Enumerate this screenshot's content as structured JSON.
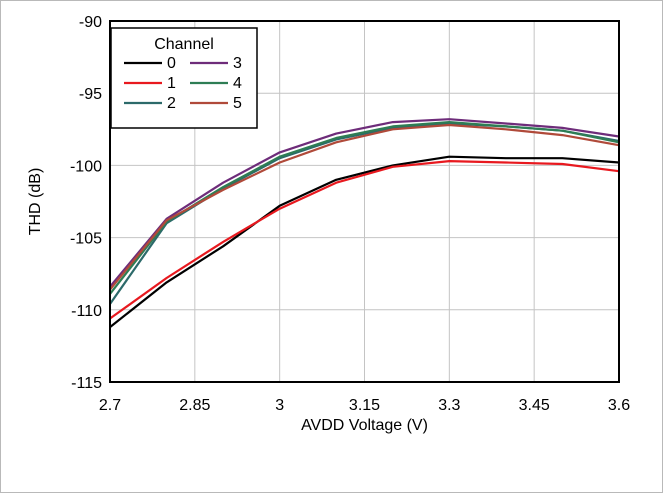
{
  "chart_data": {
    "type": "line",
    "title": "",
    "xlabel": "AVDD Voltage (V)",
    "ylabel": "THD (dB)",
    "xlim": [
      2.7,
      3.6
    ],
    "ylim": [
      -115,
      -90
    ],
    "xticks": [
      2.7,
      2.85,
      3,
      3.15,
      3.3,
      3.45,
      3.6
    ],
    "xtick_labels": [
      "2.7",
      "2.85",
      "3",
      "3.15",
      "3.3",
      "3.45",
      "3.6"
    ],
    "yticks": [
      -115,
      -110,
      -105,
      -100,
      -95,
      -90
    ],
    "ytick_labels": [
      "-115",
      "-110",
      "-105",
      "-100",
      "-95",
      "-90"
    ],
    "grid": true,
    "legend": {
      "title": "Channel",
      "placement": "top-left"
    },
    "x": [
      2.7,
      2.8,
      2.9,
      3.0,
      3.1,
      3.2,
      3.3,
      3.4,
      3.5,
      3.6
    ],
    "series": [
      {
        "name": "0",
        "color": "#000000",
        "values": [
          -111.2,
          -108.1,
          -105.6,
          -102.8,
          -101.0,
          -100.0,
          -99.4,
          -99.5,
          -99.5,
          -99.8
        ]
      },
      {
        "name": "1",
        "color": "#e8191f",
        "values": [
          -110.6,
          -107.8,
          -105.3,
          -103.0,
          -101.2,
          -100.1,
          -99.7,
          -99.8,
          -99.9,
          -100.4
        ]
      },
      {
        "name": "2",
        "color": "#2c6a6a",
        "values": [
          -109.6,
          -104.0,
          -101.6,
          -99.5,
          -98.2,
          -97.4,
          -97.1,
          -97.3,
          -97.6,
          -98.3
        ]
      },
      {
        "name": "3",
        "color": "#6e2c7a",
        "values": [
          -108.4,
          -103.7,
          -101.2,
          -99.1,
          -97.8,
          -97.0,
          -96.8,
          -97.1,
          -97.4,
          -98.0
        ]
      },
      {
        "name": "4",
        "color": "#2e7d54",
        "values": [
          -108.9,
          -103.9,
          -101.5,
          -99.4,
          -98.1,
          -97.3,
          -97.0,
          -97.3,
          -97.6,
          -98.4
        ]
      },
      {
        "name": "5",
        "color": "#b04a3a",
        "values": [
          -108.6,
          -103.8,
          -101.7,
          -99.8,
          -98.4,
          -97.5,
          -97.2,
          -97.5,
          -97.9,
          -98.6
        ]
      }
    ]
  }
}
